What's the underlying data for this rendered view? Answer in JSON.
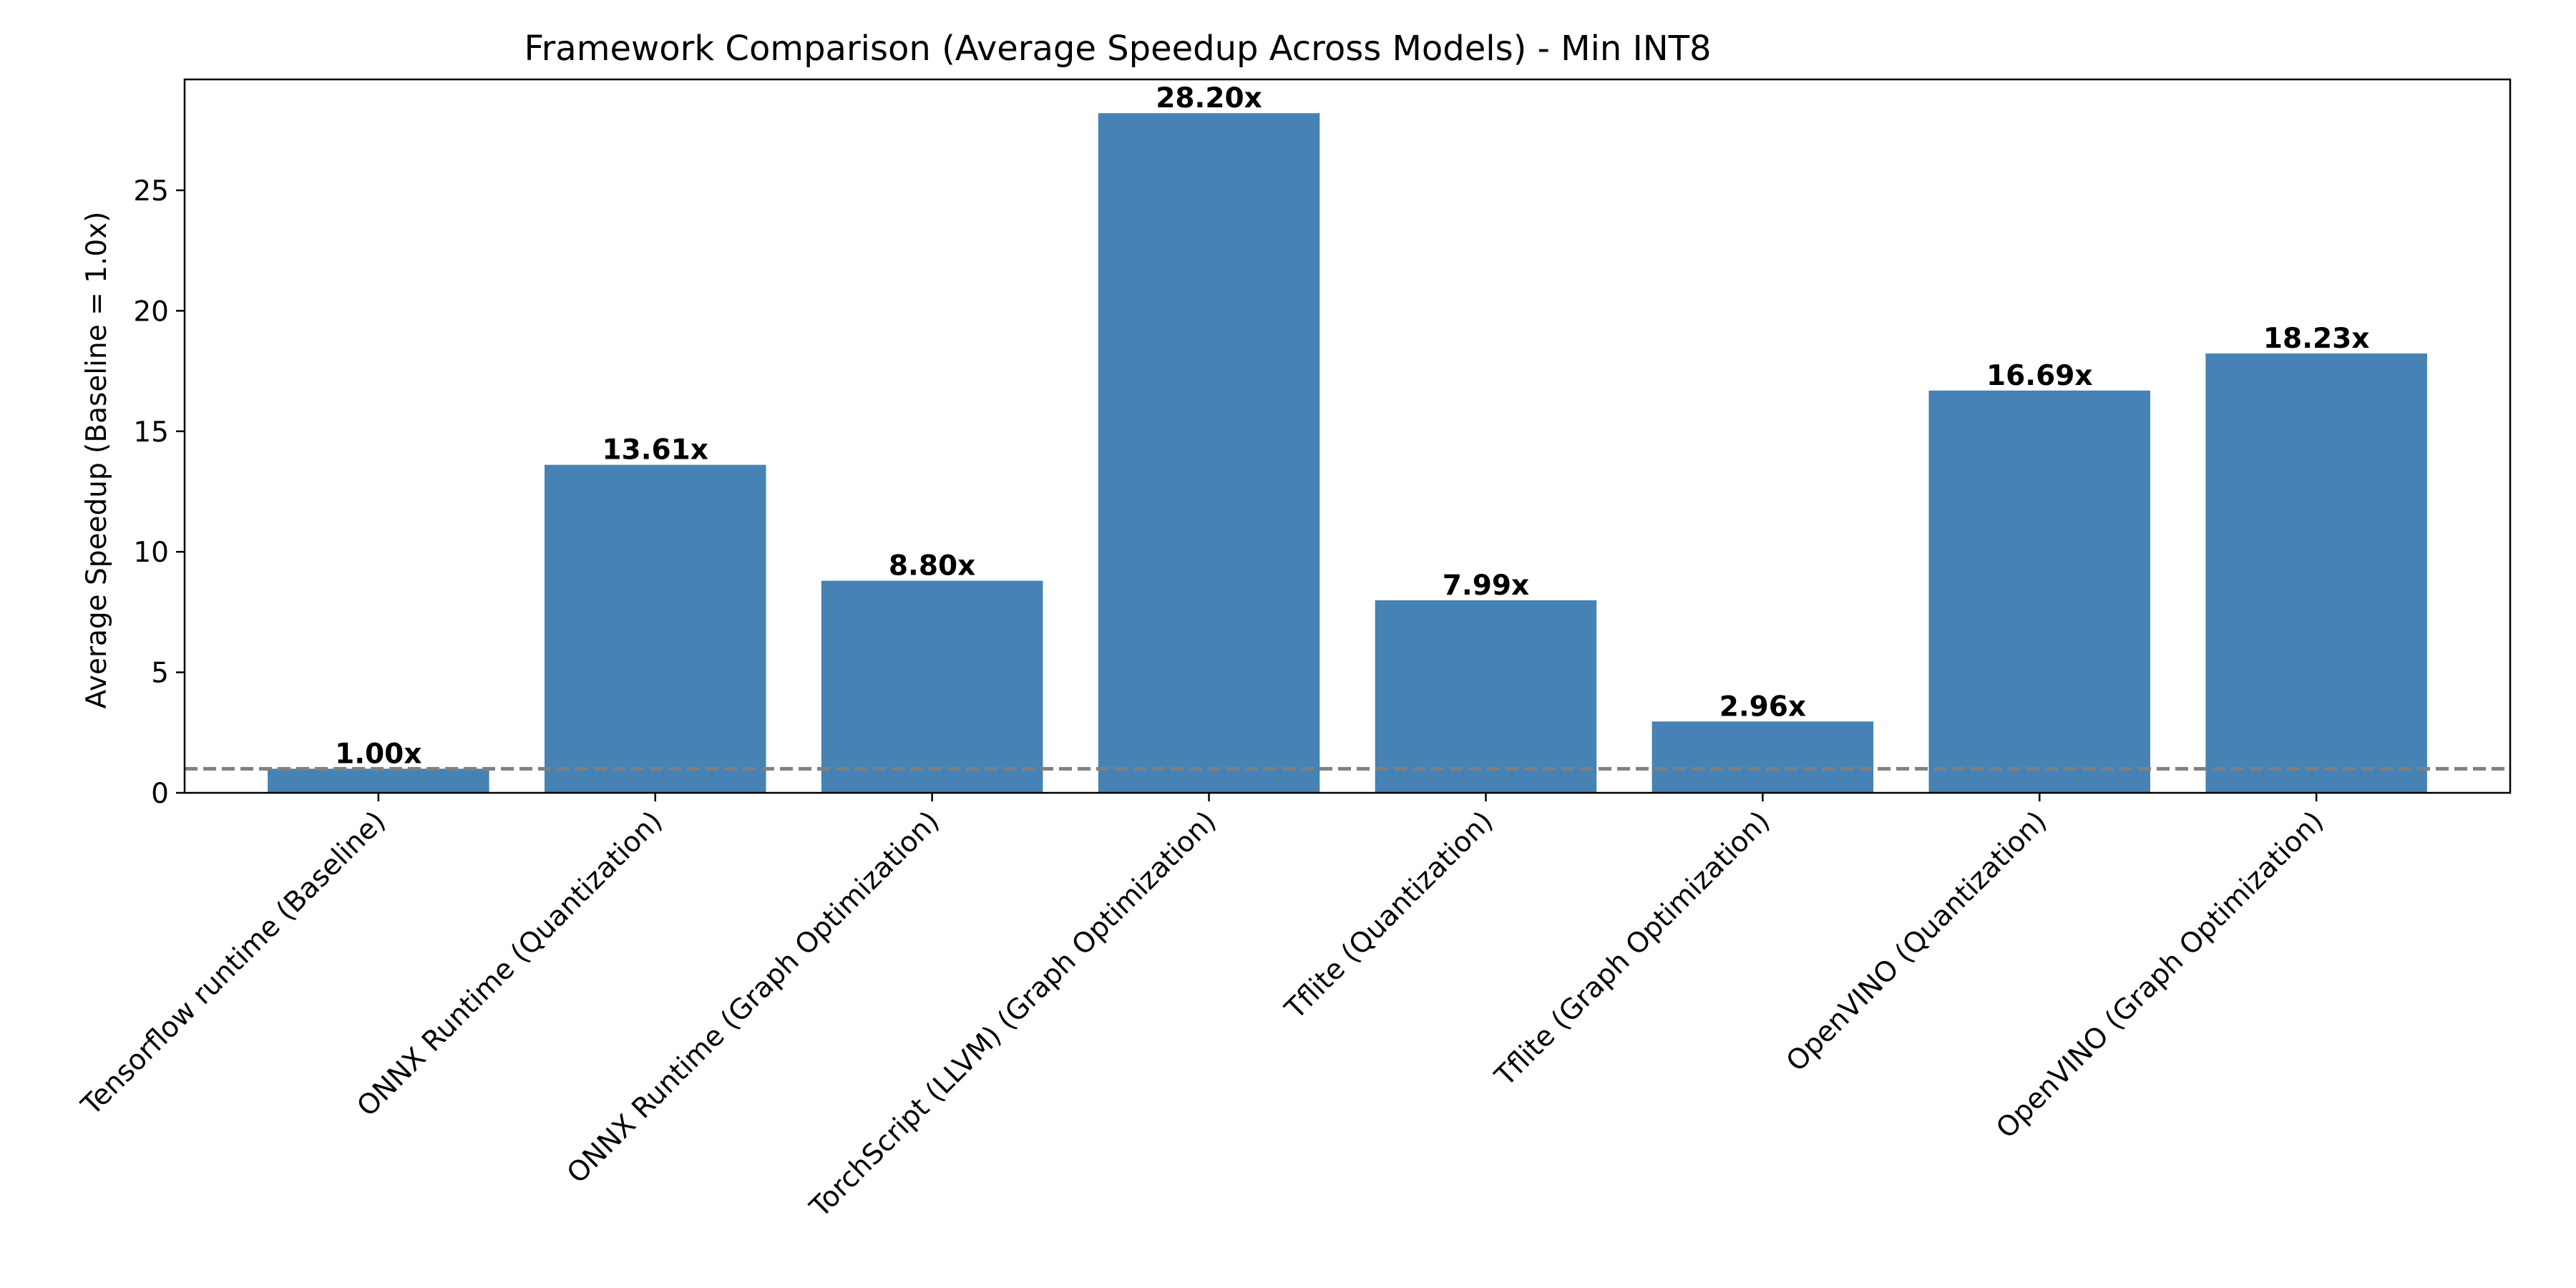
{
  "chart_data": {
    "type": "bar",
    "title": "Framework Comparison (Average Speedup Across Models) - Min INT8",
    "xlabel": "",
    "ylabel": "Average Speedup (Baseline = 1.0x)",
    "categories": [
      "Tensorflow runtime (Baseline)",
      "ONNX Runtime (Quantization)",
      "ONNX Runtime (Graph Optimization)",
      "TorchScript (LLVM) (Graph Optimization)",
      "Tflite (Quantization)",
      "Tflite (Graph Optimization)",
      "OpenVINO (Quantization)",
      "OpenVINO (Graph Optimization)"
    ],
    "values": [
      1.0,
      13.61,
      8.8,
      28.2,
      7.99,
      2.96,
      16.69,
      18.23
    ],
    "value_labels": [
      "1.00x",
      "13.61x",
      "8.80x",
      "28.20x",
      "7.99x",
      "2.96x",
      "16.69x",
      "18.23x"
    ],
    "ylim": [
      0,
      29.6
    ],
    "yticks": [
      0,
      5,
      10,
      15,
      20,
      25
    ],
    "ytick_labels": [
      "0",
      "5",
      "10",
      "15",
      "20",
      "25"
    ],
    "baseline": 1.0,
    "bar_color": "#4682b4",
    "baseline_color": "#808080",
    "grid": false,
    "legend": "none"
  }
}
